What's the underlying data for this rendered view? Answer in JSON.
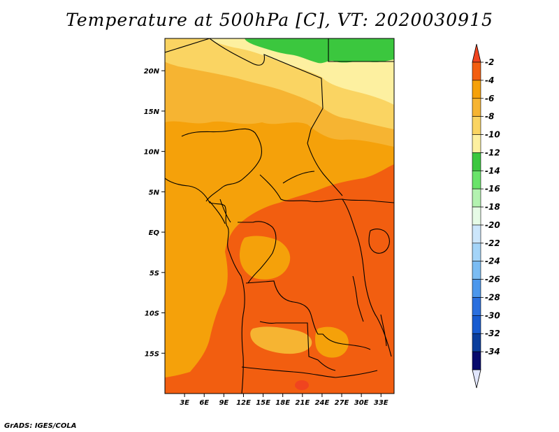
{
  "title": "Temperature at 500hPa [C], VT: 2020030915",
  "credit": "GrADS: IGES/COLA",
  "map": {
    "lon_range": [
      0,
      35
    ],
    "lat_range": [
      -20,
      24
    ],
    "lat_ticks": [
      {
        "value": 20,
        "label": "20N"
      },
      {
        "value": 15,
        "label": "15N"
      },
      {
        "value": 10,
        "label": "10N"
      },
      {
        "value": 5,
        "label": "5N"
      },
      {
        "value": 0,
        "label": "EQ"
      },
      {
        "value": -5,
        "label": "5S"
      },
      {
        "value": -10,
        "label": "10S"
      },
      {
        "value": -15,
        "label": "15S"
      }
    ],
    "lon_ticks": [
      {
        "value": 3,
        "label": "3E"
      },
      {
        "value": 6,
        "label": "6E"
      },
      {
        "value": 9,
        "label": "9E"
      },
      {
        "value": 12,
        "label": "12E"
      },
      {
        "value": 15,
        "label": "15E"
      },
      {
        "value": 18,
        "label": "18E"
      },
      {
        "value": 21,
        "label": "21E"
      },
      {
        "value": 24,
        "label": "24E"
      },
      {
        "value": 27,
        "label": "27E"
      },
      {
        "value": 30,
        "label": "30E"
      },
      {
        "value": 33,
        "label": "33E"
      }
    ]
  },
  "colorbar": {
    "labels": [
      "-2",
      "-4",
      "-6",
      "-8",
      "-10",
      "-12",
      "-14",
      "-16",
      "-18",
      "-20",
      "-22",
      "-24",
      "-26",
      "-28",
      "-30",
      "-32",
      "-34"
    ],
    "top_arrow_color": "#f0441f",
    "bottom_arrow_color": "#e1e6fc",
    "segment_colors": [
      "#f25e10",
      "#f5a10a",
      "#f6b432",
      "#fad462",
      "#fdf0a0",
      "#3bc73e",
      "#6ae36a",
      "#b3f2b0",
      "#e6fbe6",
      "#cce6fb",
      "#a4d4f8",
      "#7bbcf3",
      "#4c97ec",
      "#2a6fde",
      "#175bd0",
      "#0a3d9c",
      "#070a6c"
    ]
  }
}
